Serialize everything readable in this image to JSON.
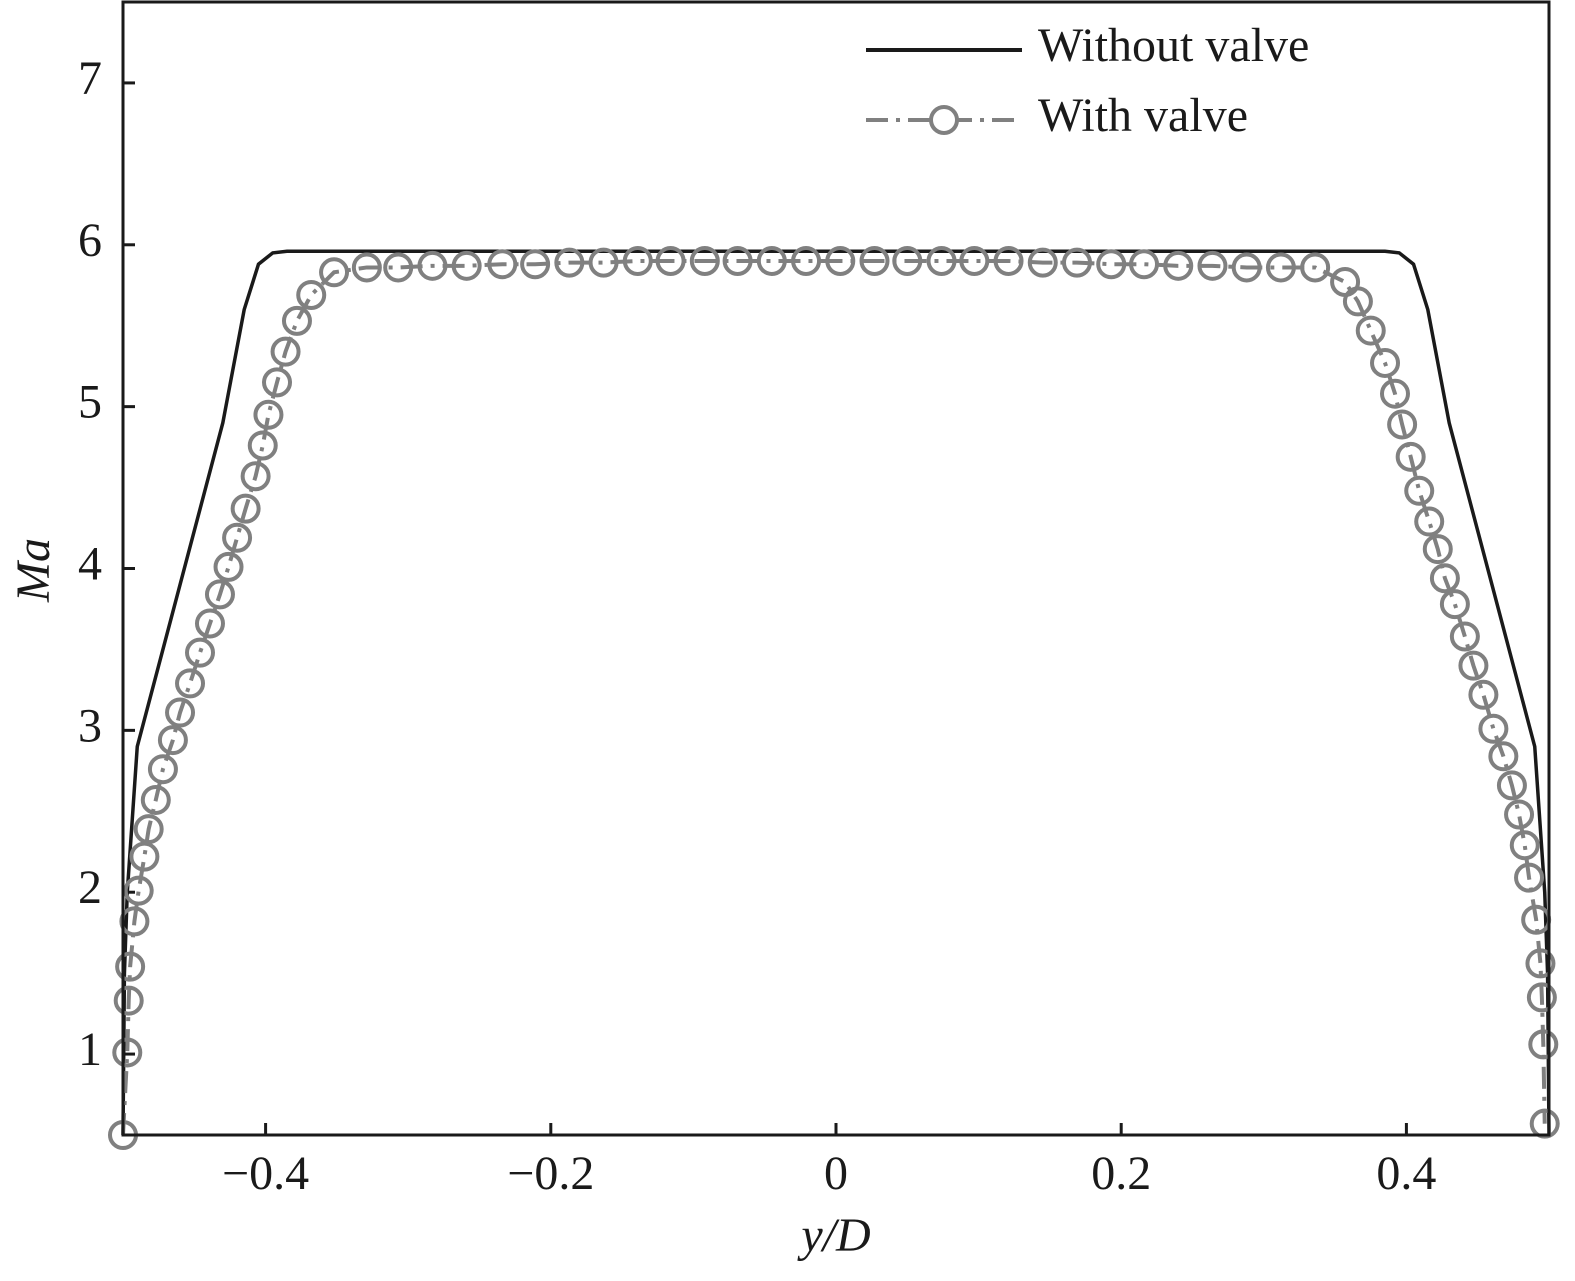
{
  "chart_data": {
    "type": "line",
    "x_label": "y/D",
    "y_label": "Ma",
    "xlim": [
      -0.5,
      0.5
    ],
    "ylim": [
      0.5,
      7.5
    ],
    "xticks": [
      {
        "value": -0.4,
        "label": "−0.4"
      },
      {
        "value": -0.2,
        "label": "−0.2"
      },
      0,
      0.2,
      0.4
    ],
    "yticks": [
      1,
      2,
      3,
      4,
      5,
      6,
      7
    ],
    "legend": "upper right",
    "series": [
      {
        "name": "Without valve",
        "color": "#1a1a1a",
        "style": "solid",
        "marker": "none",
        "x": [
          -0.5,
          -0.499,
          -0.497,
          -0.49,
          -0.46,
          -0.43,
          -0.415,
          -0.405,
          -0.395,
          -0.385,
          0.385,
          0.395,
          0.405,
          0.415,
          0.43,
          0.46,
          0.49,
          0.497,
          0.499,
          0.5
        ],
        "values": [
          0.5,
          1.5,
          2.0,
          2.9,
          3.9,
          4.9,
          5.6,
          5.88,
          5.95,
          5.96,
          5.96,
          5.95,
          5.88,
          5.6,
          4.9,
          3.9,
          2.9,
          2.0,
          1.5,
          0.5
        ]
      },
      {
        "name": "With valve",
        "color": "#808080",
        "style": "dashdot",
        "marker": "circle",
        "x": [
          -0.5,
          -0.497,
          -0.496,
          -0.495,
          -0.492,
          -0.489,
          -0.485,
          -0.482,
          -0.477,
          -0.472,
          -0.465,
          -0.46,
          -0.453,
          -0.446,
          -0.439,
          -0.432,
          -0.426,
          -0.42,
          -0.414,
          -0.407,
          -0.402,
          -0.398,
          -0.392,
          -0.386,
          -0.378,
          -0.368,
          -0.352,
          -0.329,
          -0.307,
          -0.283,
          -0.259,
          -0.234,
          -0.211,
          -0.187,
          -0.163,
          -0.139,
          -0.116,
          -0.092,
          -0.069,
          -0.045,
          -0.021,
          0.003,
          0.027,
          0.05,
          0.074,
          0.097,
          0.121,
          0.145,
          0.169,
          0.193,
          0.216,
          0.24,
          0.264,
          0.288,
          0.312,
          0.336,
          0.357,
          0.366,
          0.375,
          0.385,
          0.392,
          0.397,
          0.403,
          0.409,
          0.416,
          0.422,
          0.427,
          0.434,
          0.441,
          0.447,
          0.454,
          0.461,
          0.468,
          0.474,
          0.479,
          0.483,
          0.486,
          0.491,
          0.494,
          0.495,
          0.496,
          0.497
        ],
        "values": [
          0.5,
          1.01,
          1.33,
          1.54,
          1.82,
          2.01,
          2.22,
          2.39,
          2.57,
          2.76,
          2.94,
          3.11,
          3.29,
          3.48,
          3.66,
          3.84,
          4.01,
          4.19,
          4.37,
          4.57,
          4.76,
          4.95,
          5.15,
          5.34,
          5.53,
          5.69,
          5.83,
          5.86,
          5.86,
          5.87,
          5.87,
          5.88,
          5.88,
          5.89,
          5.89,
          5.9,
          5.9,
          5.9,
          5.9,
          5.9,
          5.9,
          5.9,
          5.9,
          5.9,
          5.9,
          5.9,
          5.9,
          5.89,
          5.89,
          5.88,
          5.88,
          5.87,
          5.87,
          5.86,
          5.86,
          5.86,
          5.77,
          5.65,
          5.47,
          5.27,
          5.08,
          4.89,
          4.69,
          4.48,
          4.29,
          4.12,
          3.94,
          3.78,
          3.58,
          3.4,
          3.22,
          3.01,
          2.84,
          2.66,
          2.48,
          2.29,
          2.09,
          1.83,
          1.56,
          1.35,
          1.06,
          0.57
        ]
      }
    ]
  }
}
